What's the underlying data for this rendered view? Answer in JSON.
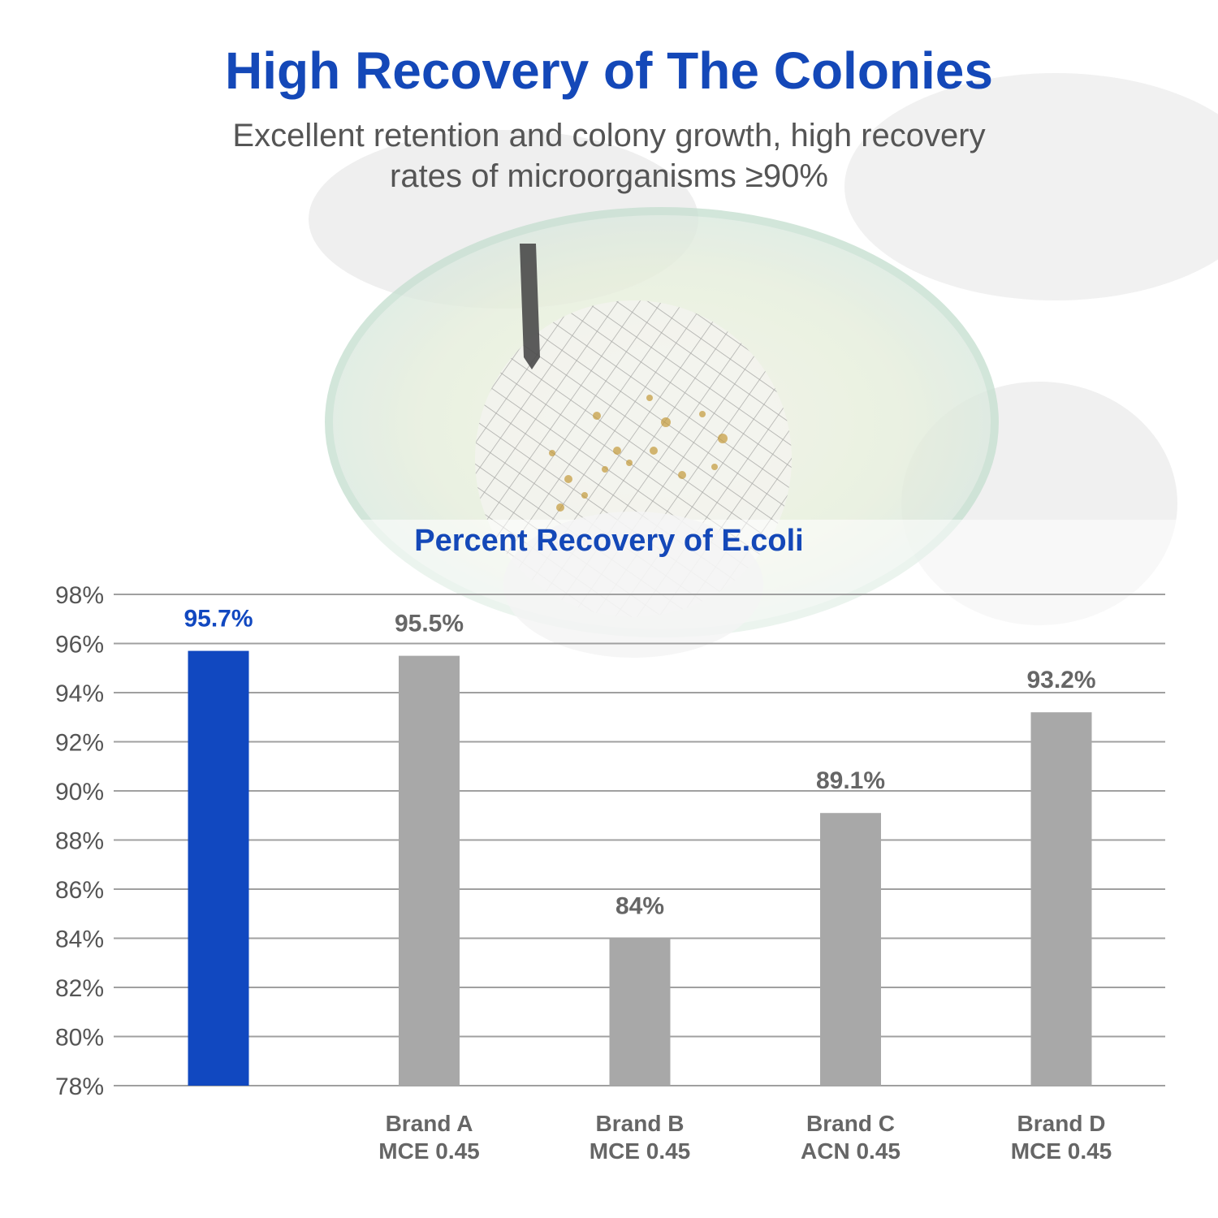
{
  "header": {
    "title": "High Recovery of The Colonies",
    "subtitle_line1": "Excellent retention and colony growth, high recovery",
    "subtitle_line2": "rates of microorganisms ≥90%"
  },
  "colors": {
    "title": "#1448b8",
    "highlight_bar": "#1148c0",
    "other_bars": "#a8a8a8",
    "grid": "#a0a0a0"
  },
  "chart_data": {
    "type": "bar",
    "title": "Percent Recovery of E.coli",
    "xlabel": "",
    "ylabel": "",
    "ylim": [
      78,
      98
    ],
    "yticks": [
      78,
      80,
      82,
      84,
      86,
      88,
      90,
      92,
      94,
      96,
      98
    ],
    "ytick_format": "%",
    "grid": true,
    "legend": "none",
    "categories": [
      [
        "",
        ""
      ],
      [
        "Brand A",
        "MCE 0.45"
      ],
      [
        "Brand B",
        "MCE 0.45"
      ],
      [
        "Brand C",
        "ACN 0.45"
      ],
      [
        "Brand D",
        "MCE 0.45"
      ]
    ],
    "values": [
      95.7,
      95.5,
      84,
      89.1,
      93.2
    ],
    "value_labels": [
      "95.7%",
      "95.5%",
      "84%",
      "89.1%",
      "93.2%"
    ],
    "highlight_index": 0
  }
}
